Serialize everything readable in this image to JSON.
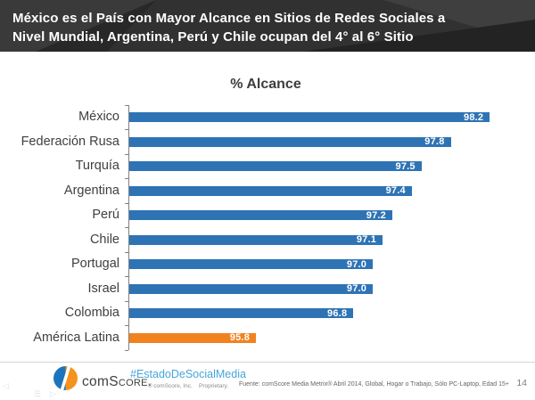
{
  "header": {
    "title_line1": "México es el País con Mayor Alcance en Sitios de Redes Sociales a",
    "title_line2": "Nivel Mundial, Argentina, Perú y Chile ocupan del 4° al 6° Sitio",
    "background_color": "#313131"
  },
  "chart_data": {
    "type": "bar",
    "orientation": "horizontal",
    "title": "% Alcance",
    "categories": [
      "México",
      "Federación Rusa",
      "Turquía",
      "Argentina",
      "Perú",
      "Chile",
      "Portugal",
      "Israel",
      "Colombia",
      "América Latina"
    ],
    "values": [
      98.2,
      97.8,
      97.5,
      97.4,
      97.2,
      97.1,
      97.0,
      97.0,
      96.8,
      95.8
    ],
    "value_labels": [
      "98.2",
      "97.8",
      "97.5",
      "97.4",
      "97.2",
      "97.1",
      "97.0",
      "97.0",
      "96.8",
      "95.8"
    ],
    "xlabel": "",
    "ylabel": "",
    "xlim": [
      94.5,
      98.5
    ],
    "grid": false,
    "legend": false,
    "bar_color": "#2E74B5",
    "highlight_color": "#F1821E",
    "highlight_index": 9,
    "value_label_color": "#FFFFFF",
    "axis_color": "#808080"
  },
  "footer": {
    "logo_text_prefix": "com",
    "logo_text_suffix": "Score.",
    "hashtag": "#EstadoDeSocialMedia",
    "hashtag_color": "#45A6DB",
    "copyright": "© comScore, Inc.    Proprietary.",
    "source": "Fuente: comScore Media Metrix® Abril 2014, Global, Hogar o Trabajo, Sólo PC-Laptop, Edad 15+",
    "page_number": "14"
  },
  "icons": {
    "back_arrow": "◁",
    "menu": "☰",
    "forward_arrow": "▷",
    "logo_blue": "#1C75BC",
    "logo_orange": "#F6921E"
  }
}
